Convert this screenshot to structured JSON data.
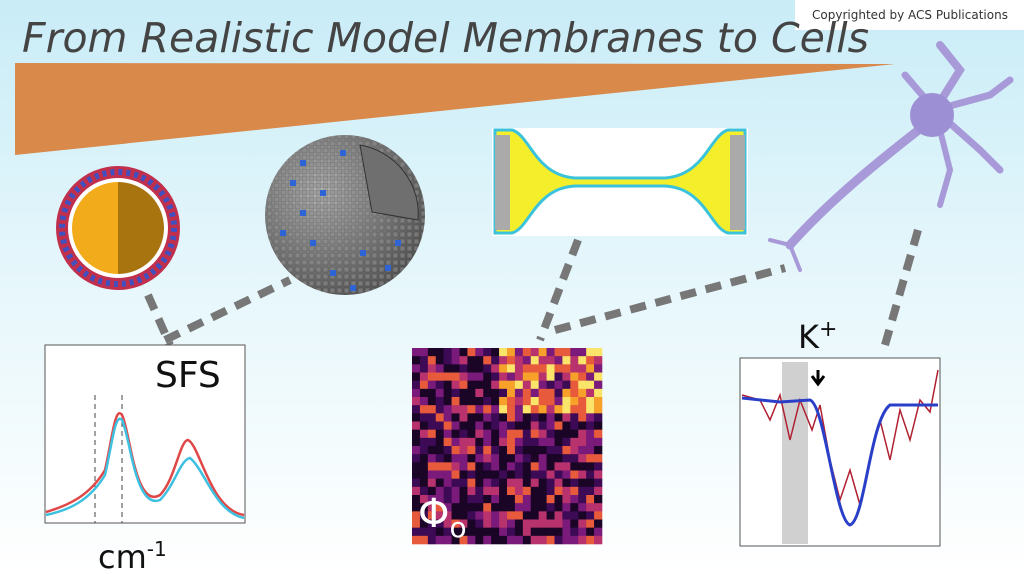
{
  "watermark": "Copyrighted by ACS Publications",
  "title": "From Realistic Model Membranes to Cells",
  "panels": {
    "sfs": {
      "label": "SFS",
      "axis_label": {
        "base": "cm",
        "sup": "-1"
      }
    },
    "imaging": {
      "label": {
        "base": "Φ",
        "sub": "o"
      }
    },
    "trace": {
      "label": {
        "base": "K",
        "sup": "+"
      }
    }
  }
}
